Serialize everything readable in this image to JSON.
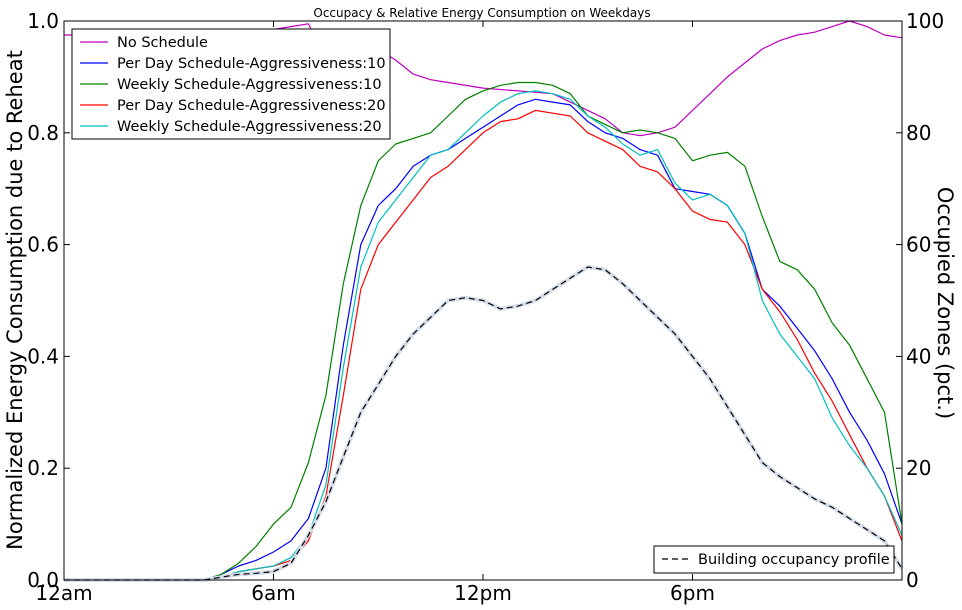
{
  "chart_data": {
    "type": "line",
    "title": "Occupacy & Relative Energy Consumption on Weekdays",
    "ylabel": "Normalized Energy Consumption due to Reheat",
    "y2label": "Occupied Zones (pct.)",
    "xlim": [
      0,
      24
    ],
    "ylim": [
      0,
      1.0
    ],
    "y2lim": [
      0,
      100
    ],
    "x_ticks": [
      0,
      6,
      12,
      18
    ],
    "x_tick_labels": [
      "12am",
      "6am",
      "12pm",
      "6pm"
    ],
    "y_ticks": [
      "0.0",
      "0.2",
      "0.4",
      "0.6",
      "0.8",
      "1.0"
    ],
    "y2_ticks": [
      "0",
      "20",
      "40",
      "60",
      "80",
      "100"
    ],
    "grid": false,
    "legend_placement": "top-left",
    "legend2_placement": "bottom-right",
    "series": [
      {
        "name": "No Schedule",
        "color": "#bf00bf",
        "axis": "left",
        "style": "solid",
        "x": [
          0,
          2,
          4,
          6,
          6.5,
          7,
          7.2,
          7.5,
          8,
          8.5,
          9,
          9.5,
          10,
          10.5,
          11,
          12,
          13,
          14,
          15,
          15.5,
          16,
          16.5,
          17,
          17.5,
          18,
          18.5,
          19,
          19.5,
          20,
          20.5,
          21,
          21.5,
          22,
          22.5,
          23,
          23.5,
          24
        ],
        "y": [
          0.975,
          0.975,
          0.98,
          0.985,
          0.99,
          0.995,
          0.97,
          0.95,
          0.955,
          0.945,
          0.95,
          0.93,
          0.905,
          0.895,
          0.89,
          0.88,
          0.875,
          0.87,
          0.84,
          0.825,
          0.8,
          0.795,
          0.8,
          0.81,
          0.84,
          0.87,
          0.9,
          0.925,
          0.95,
          0.965,
          0.975,
          0.98,
          0.99,
          1.0,
          0.99,
          0.975,
          0.97
        ]
      },
      {
        "name": "Per Day Schedule-Aggressiveness:10",
        "color": "#0000ff",
        "axis": "left",
        "style": "solid",
        "x": [
          0,
          4,
          4.5,
          5,
          5.5,
          6,
          6.5,
          7,
          7.5,
          8,
          8.5,
          9,
          9.5,
          10,
          10.5,
          11,
          11.5,
          12,
          12.5,
          13,
          13.5,
          14,
          14.5,
          15,
          15.5,
          16,
          16.5,
          17,
          17.5,
          18,
          18.5,
          19,
          19.5,
          20,
          20.5,
          21,
          21.5,
          22,
          22.5,
          23,
          23.5,
          24
        ],
        "y": [
          0,
          0,
          0.01,
          0.025,
          0.035,
          0.05,
          0.07,
          0.11,
          0.2,
          0.42,
          0.6,
          0.67,
          0.7,
          0.74,
          0.76,
          0.77,
          0.79,
          0.81,
          0.83,
          0.85,
          0.86,
          0.855,
          0.85,
          0.82,
          0.8,
          0.79,
          0.77,
          0.76,
          0.7,
          0.695,
          0.69,
          0.67,
          0.62,
          0.52,
          0.49,
          0.45,
          0.41,
          0.36,
          0.3,
          0.25,
          0.19,
          0.1
        ]
      },
      {
        "name": "Weekly  Schedule-Aggressiveness:10",
        "color": "#008000",
        "axis": "left",
        "style": "solid",
        "x": [
          0,
          4,
          4.5,
          5,
          5.5,
          6,
          6.5,
          7,
          7.5,
          8,
          8.5,
          9,
          9.5,
          10,
          10.5,
          11,
          11.5,
          12,
          12.5,
          13,
          13.5,
          14,
          14.5,
          15,
          15.5,
          16,
          16.5,
          17,
          17.5,
          18,
          18.5,
          19,
          19.5,
          20,
          20.5,
          21,
          21.5,
          22,
          22.5,
          23,
          23.5,
          24
        ],
        "y": [
          0,
          0,
          0.01,
          0.03,
          0.06,
          0.1,
          0.13,
          0.21,
          0.33,
          0.53,
          0.67,
          0.75,
          0.78,
          0.79,
          0.8,
          0.83,
          0.86,
          0.875,
          0.885,
          0.89,
          0.89,
          0.885,
          0.87,
          0.83,
          0.815,
          0.8,
          0.805,
          0.8,
          0.79,
          0.75,
          0.76,
          0.765,
          0.74,
          0.65,
          0.57,
          0.555,
          0.52,
          0.46,
          0.42,
          0.36,
          0.3,
          0.1
        ]
      },
      {
        "name": "Per Day Schedule-Aggressiveness:20",
        "color": "#ff0000",
        "axis": "left",
        "style": "solid",
        "x": [
          0,
          4,
          4.5,
          5,
          5.5,
          6,
          6.5,
          7,
          7.5,
          8,
          8.5,
          9,
          9.5,
          10,
          10.5,
          11,
          11.5,
          12,
          12.5,
          13,
          13.5,
          14,
          14.5,
          15,
          15.5,
          16,
          16.5,
          17,
          17.5,
          18,
          18.5,
          19,
          19.5,
          20,
          20.5,
          21,
          21.5,
          22,
          22.5,
          23,
          23.5,
          24
        ],
        "y": [
          0,
          0,
          0.005,
          0.015,
          0.02,
          0.025,
          0.035,
          0.07,
          0.15,
          0.33,
          0.52,
          0.6,
          0.64,
          0.68,
          0.72,
          0.74,
          0.77,
          0.8,
          0.82,
          0.825,
          0.84,
          0.835,
          0.83,
          0.8,
          0.785,
          0.77,
          0.74,
          0.73,
          0.7,
          0.66,
          0.645,
          0.64,
          0.6,
          0.52,
          0.48,
          0.43,
          0.37,
          0.32,
          0.26,
          0.2,
          0.15,
          0.07
        ]
      },
      {
        "name": "Weekly  Schedule-Aggressiveness:20",
        "color": "#00bfbf",
        "axis": "left",
        "style": "solid",
        "x": [
          0,
          4,
          4.5,
          5,
          5.5,
          6,
          6.5,
          7,
          7.5,
          8,
          8.5,
          9,
          9.5,
          10,
          10.5,
          11,
          11.5,
          12,
          12.5,
          13,
          13.5,
          14,
          14.5,
          15,
          15.5,
          16,
          16.5,
          17,
          17.5,
          18,
          18.5,
          19,
          19.5,
          20,
          20.5,
          21,
          21.5,
          22,
          22.5,
          23,
          23.5,
          24
        ],
        "y": [
          0,
          0,
          0.005,
          0.015,
          0.02,
          0.025,
          0.04,
          0.08,
          0.17,
          0.38,
          0.56,
          0.64,
          0.68,
          0.72,
          0.76,
          0.77,
          0.8,
          0.83,
          0.855,
          0.87,
          0.875,
          0.87,
          0.86,
          0.83,
          0.81,
          0.78,
          0.76,
          0.77,
          0.71,
          0.68,
          0.69,
          0.67,
          0.62,
          0.5,
          0.44,
          0.4,
          0.36,
          0.29,
          0.24,
          0.2,
          0.15,
          0.08
        ]
      },
      {
        "name": "Building occupancy profile",
        "color": "#000000",
        "axis": "right",
        "style": "dashed",
        "x": [
          0,
          4,
          4.5,
          5,
          5.5,
          6,
          6.5,
          7,
          7.5,
          8,
          8.5,
          9,
          9.5,
          10,
          10.5,
          11,
          11.5,
          12,
          12.5,
          13,
          13.5,
          14,
          14.5,
          15,
          15.5,
          16,
          16.5,
          17,
          17.5,
          18,
          18.5,
          19,
          19.5,
          20,
          20.5,
          21,
          21.5,
          22,
          22.5,
          23,
          23.5,
          24
        ],
        "y": [
          0,
          0,
          0.5,
          1,
          1.2,
          1.5,
          3,
          8,
          14,
          22,
          30,
          35,
          40,
          44,
          47,
          50,
          50.5,
          50,
          48.5,
          49,
          50,
          52,
          54,
          56,
          55.5,
          53,
          50,
          47,
          44,
          40,
          36,
          31,
          26,
          21,
          18.5,
          16.5,
          14.5,
          13,
          11,
          9,
          7,
          2
        ]
      }
    ]
  }
}
